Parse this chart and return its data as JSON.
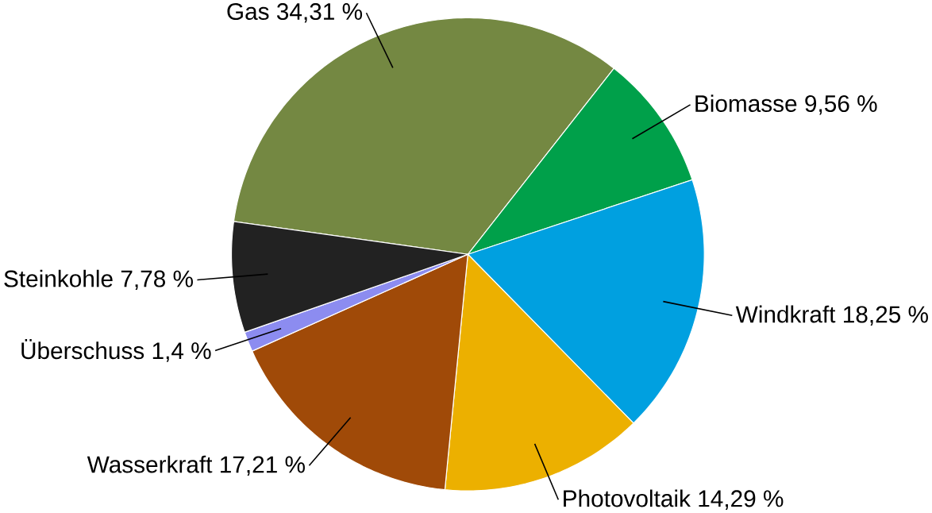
{
  "chart_data": {
    "type": "pie",
    "categories": [
      "Gas",
      "Biomasse",
      "Windkraft",
      "Photovoltaik",
      "Wasserkraft",
      "Überschuss",
      "Steinkohle"
    ],
    "values": [
      34.31,
      9.56,
      18.25,
      14.29,
      17.21,
      1.4,
      7.78
    ],
    "value_labels": [
      "34,31 %",
      "9,56 %",
      "18,25 %",
      "14,29 %",
      "17,21 %",
      "1,4 %",
      "7,78 %"
    ],
    "colors": [
      "#748842",
      "#00a04a",
      "#00a0e0",
      "#ecb000",
      "#a04a08",
      "#8c8cf0",
      "#222222"
    ]
  }
}
